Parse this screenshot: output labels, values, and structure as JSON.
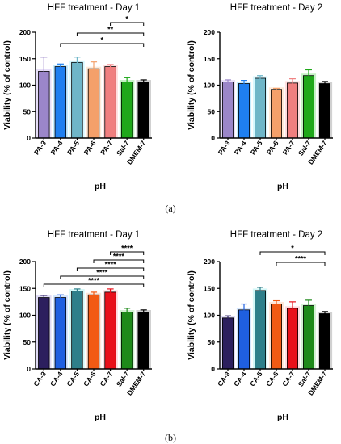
{
  "figure_labels": {
    "a": "(a)",
    "b": "(b)"
  },
  "chart_data": [
    {
      "type": "bar",
      "title": "HFF treatment - Day 1",
      "xlabel": "pH",
      "ylabel": "Viability (% of control)",
      "ylim": [
        0,
        200
      ],
      "yticks": [
        0,
        50,
        100,
        150,
        200
      ],
      "categories": [
        "PA-3",
        "PA-4",
        "PA-5",
        "PA-6",
        "PA-7",
        "Sal-7",
        "DMEM-7"
      ],
      "values": [
        126,
        135,
        143,
        131,
        135,
        106,
        106
      ],
      "errors": [
        27,
        5,
        10,
        13,
        4,
        8,
        4
      ],
      "colors": [
        "#9b86c9",
        "#1f7ff0",
        "#6fb6c8",
        "#f4a06a",
        "#f07f7f",
        "#1fa81a",
        "#000000"
      ],
      "glow": [
        "#c9b8f0",
        "#7fd4ff",
        "#a6f0ff",
        "#ffd0a8",
        "#ffb8b8",
        "#7fe07f",
        "#999999"
      ],
      "significance": [
        {
          "from": "PA-7",
          "to": "DMEM-7",
          "label": "*"
        },
        {
          "from": "PA-5",
          "to": "DMEM-7",
          "label": "**"
        },
        {
          "from": "PA-4",
          "to": "DMEM-7",
          "label": "*"
        }
      ]
    },
    {
      "type": "bar",
      "title": "HFF treatment - Day 2",
      "xlabel": "pH",
      "ylabel": "Viability (% of control)",
      "ylim": [
        0,
        200
      ],
      "yticks": [
        0,
        50,
        100,
        150,
        200
      ],
      "categories": [
        "PA-3",
        "PA-4",
        "PA-5",
        "PA-6",
        "PA-7",
        "Sal-7",
        "DMEM-7"
      ],
      "values": [
        106,
        103,
        113,
        92,
        104,
        118,
        103
      ],
      "errors": [
        4,
        6,
        5,
        2,
        8,
        11,
        4
      ],
      "colors": [
        "#9b86c9",
        "#1f7ff0",
        "#6fb6c8",
        "#f4a06a",
        "#f07f7f",
        "#1fa81a",
        "#000000"
      ],
      "glow": [
        "#c9b8f0",
        "#7fd4ff",
        "#a6f0ff",
        "#ffd0a8",
        "#ffb8b8",
        "#7fe07f",
        "#999999"
      ],
      "significance": []
    },
    {
      "type": "bar",
      "title": "HFF treatment - Day 1",
      "xlabel": "pH",
      "ylabel": "Viability (% of control)",
      "ylim": [
        0,
        200
      ],
      "yticks": [
        0,
        50,
        100,
        150,
        200
      ],
      "categories": [
        "CA-3",
        "CA-4",
        "CA-5",
        "CA-6",
        "CA-7",
        "Sal-7",
        "DMEM-7"
      ],
      "values": [
        133,
        133,
        145,
        138,
        143,
        106,
        106
      ],
      "errors": [
        4,
        5,
        4,
        5,
        6,
        7,
        4
      ],
      "colors": [
        "#2c1f5e",
        "#1f5fe0",
        "#2e7f8a",
        "#f25a14",
        "#e8101a",
        "#1e8a1a",
        "#000000"
      ],
      "glow": [
        "#b8b0e8",
        "#9fc8ff",
        "#9ff0f0",
        "#ffc8a8",
        "#ffb0b8",
        "#9fe09f",
        "#999999"
      ],
      "significance": [
        {
          "from": "CA-7",
          "to": "DMEM-7",
          "label": "****"
        },
        {
          "from": "CA-6",
          "to": "DMEM-7",
          "label": "****"
        },
        {
          "from": "CA-5",
          "to": "DMEM-7",
          "label": "****"
        },
        {
          "from": "CA-4",
          "to": "DMEM-7",
          "label": "****"
        },
        {
          "from": "CA-3",
          "to": "DMEM-7",
          "label": "****"
        }
      ]
    },
    {
      "type": "bar",
      "title": "HFF treatment - Day 2",
      "xlabel": "pH",
      "ylabel": "Viability (% of control)",
      "ylim": [
        0,
        200
      ],
      "yticks": [
        0,
        50,
        100,
        150,
        200
      ],
      "categories": [
        "CA-3",
        "CA-4",
        "CA-5",
        "CA-6",
        "CA-7",
        "Sal-7",
        "DMEM-7"
      ],
      "values": [
        95,
        110,
        146,
        121,
        113,
        118,
        103
      ],
      "errors": [
        4,
        11,
        6,
        6,
        12,
        10,
        4
      ],
      "colors": [
        "#2c1f5e",
        "#1f5fe0",
        "#2e7f8a",
        "#f25a14",
        "#e8101a",
        "#1e8a1a",
        "#000000"
      ],
      "glow": [
        "#b8b0e8",
        "#9fc8ff",
        "#9ff0f0",
        "#ffc8a8",
        "#ffb0b8",
        "#9fe09f",
        "#999999"
      ],
      "significance": [
        {
          "from": "CA-5",
          "to": "DMEM-7",
          "label": "*"
        },
        {
          "from": "CA-6",
          "to": "DMEM-7",
          "label": "****"
        }
      ]
    }
  ]
}
